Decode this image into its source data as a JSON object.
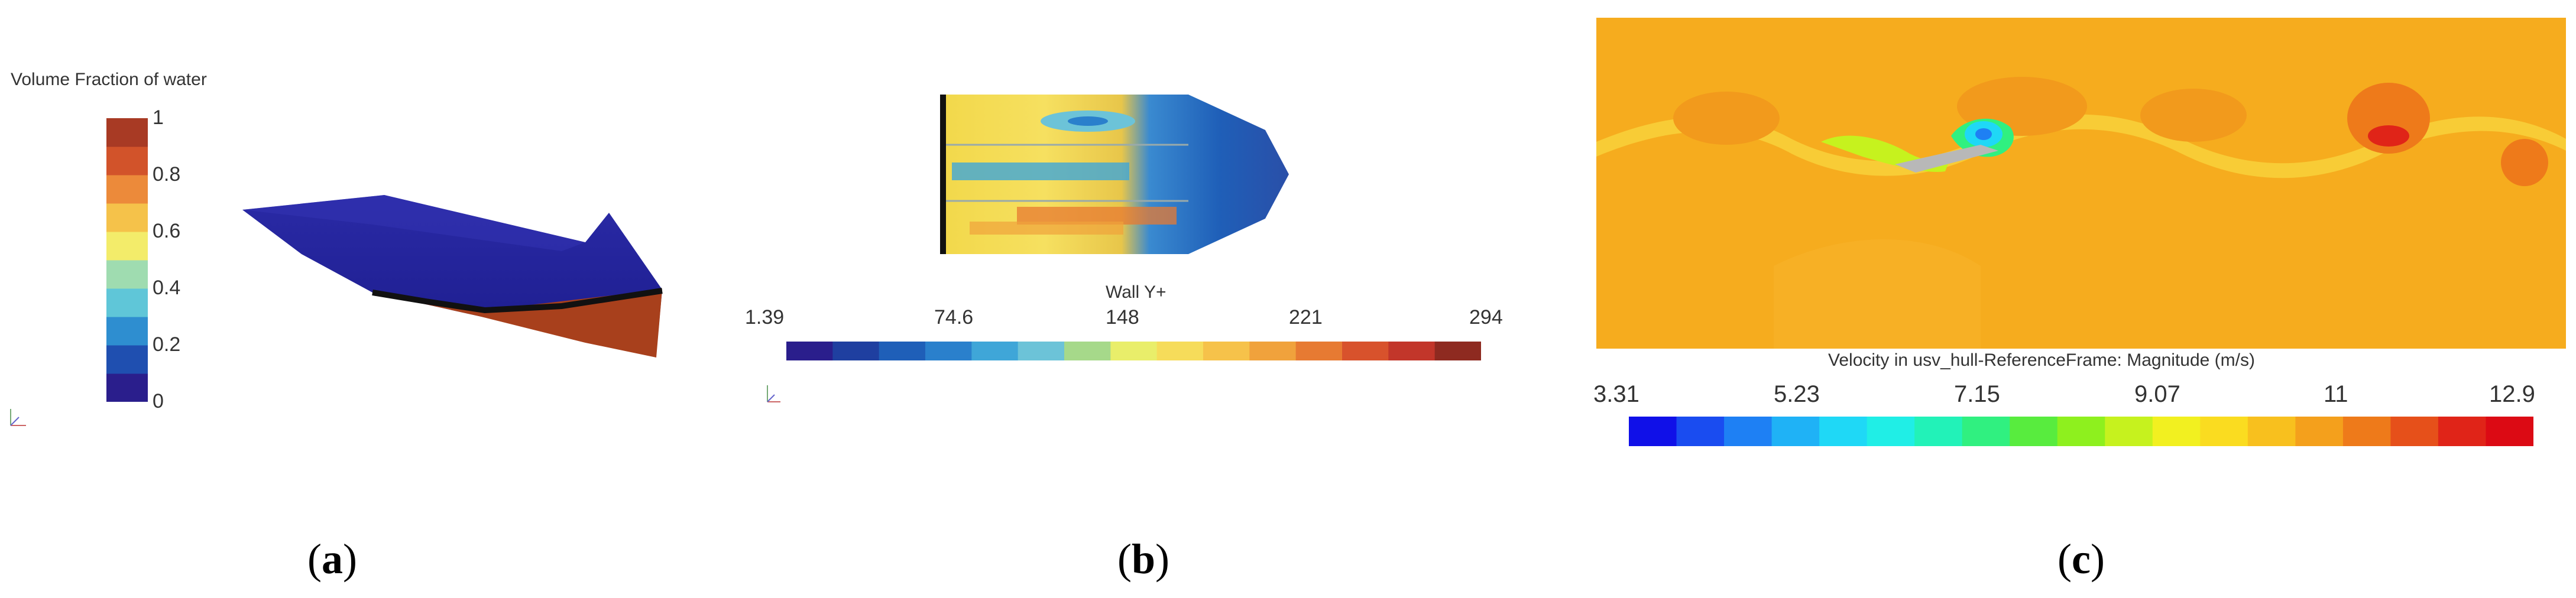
{
  "panels": [
    {
      "id": "a",
      "sublabel_open": "(",
      "sublabel_letter": "a",
      "sublabel_close": ")",
      "colorbar": {
        "title": "Volume Fraction of water",
        "ticks": [
          "1",
          "0.8",
          "0.6",
          "0.4",
          "0.2",
          "0"
        ],
        "colors": [
          "#2a1e8c",
          "#1f4fb0",
          "#2e8ed0",
          "#5fc6d8",
          "#9fdcb0",
          "#f3ec6a",
          "#f5c24a",
          "#ec8a3a",
          "#d2532a",
          "#a83a24"
        ]
      }
    },
    {
      "id": "b",
      "sublabel_open": "(",
      "sublabel_letter": "b",
      "sublabel_close": ")",
      "colorbar": {
        "title": "Wall Y+",
        "ticks": [
          "1.39",
          "74.6",
          "148",
          "221",
          "294"
        ],
        "colors": [
          "#2a1e8c",
          "#1f3fa0",
          "#1f5fb8",
          "#2a80cc",
          "#3fa6d8",
          "#6cc3d8",
          "#a6d98a",
          "#e9ee6a",
          "#f6dc5a",
          "#f6c24a",
          "#f0a23c",
          "#e77a32",
          "#d8522c",
          "#c2362a",
          "#8e2a20"
        ]
      }
    },
    {
      "id": "c",
      "sublabel_open": "(",
      "sublabel_letter": "c",
      "sublabel_close": ")",
      "colorbar": {
        "title": "Velocity in usv_hull-ReferenceFrame: Magnitude (m/s)",
        "ticks": [
          "3.31",
          "5.23",
          "7.15",
          "9.07",
          "11",
          "12.9"
        ],
        "colors": [
          "#1010e8",
          "#1a4cf0",
          "#1e80f4",
          "#1fb2f6",
          "#1fd8f6",
          "#20eee6",
          "#22f2b8",
          "#30f080",
          "#58ec3e",
          "#8ef01e",
          "#c6f21e",
          "#f2f020",
          "#fadc20",
          "#f8c01e",
          "#f4a01c",
          "#ee7a1a",
          "#e6501a",
          "#e02418",
          "#dc0a14"
        ]
      }
    }
  ]
}
